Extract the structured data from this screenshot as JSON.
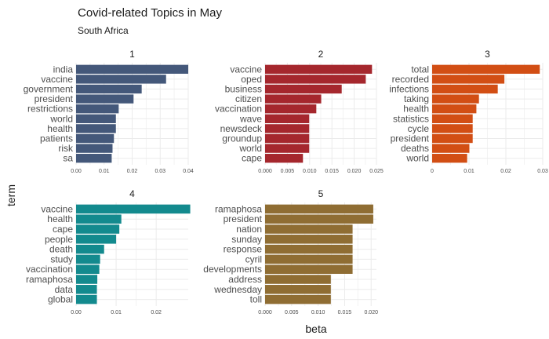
{
  "title": "Covid-related Topics in May",
  "subtitle": "South Africa",
  "chart_data": {
    "type": "bar",
    "orientation": "horizontal",
    "xlabel": "beta",
    "ylabel": "term",
    "grid": true,
    "facets": [
      {
        "label": "1",
        "color": "#44587a",
        "xlim": [
          0,
          0.04
        ],
        "ticks": [
          0,
          0.01,
          0.02,
          0.03,
          0.04
        ],
        "tick_labels": [
          "0.00",
          "0.01",
          "0.02",
          "0.03",
          "0.04"
        ],
        "categories": [
          "india",
          "vaccine",
          "government",
          "president",
          "restrictions",
          "world",
          "health",
          "patients",
          "risk",
          "sa"
        ],
        "values": [
          0.04,
          0.0321,
          0.0234,
          0.0205,
          0.0152,
          0.0142,
          0.0142,
          0.0135,
          0.013,
          0.0127
        ]
      },
      {
        "label": "2",
        "color": "#a5272d",
        "xlim": [
          0,
          0.025
        ],
        "ticks": [
          0,
          0.005,
          0.01,
          0.015,
          0.02,
          0.025
        ],
        "tick_labels": [
          "0.000",
          "0.005",
          "0.010",
          "0.015",
          "0.020",
          "0.025"
        ],
        "categories": [
          "vaccine",
          "oped",
          "business",
          "citizen",
          "vaccination",
          "wave",
          "newsdeck",
          "groundup",
          "world",
          "cape"
        ],
        "values": [
          0.024,
          0.0226,
          0.0172,
          0.0126,
          0.0115,
          0.0099,
          0.0099,
          0.0099,
          0.0099,
          0.0085
        ]
      },
      {
        "label": "3",
        "color": "#d24e14",
        "xlim": [
          0,
          0.03
        ],
        "ticks": [
          0,
          0.01,
          0.02,
          0.03
        ],
        "tick_labels": [
          "0",
          "0.01",
          "0.02",
          "0.03"
        ],
        "categories": [
          "total",
          "recorded",
          "infections",
          "taking",
          "health",
          "statistics",
          "cycle",
          "president",
          "deaths",
          "world"
        ],
        "values": [
          0.0292,
          0.0196,
          0.0178,
          0.0127,
          0.012,
          0.011,
          0.011,
          0.011,
          0.0101,
          0.0095
        ]
      },
      {
        "label": "4",
        "color": "#138a8e",
        "xlim": [
          0,
          0.028
        ],
        "ticks": [
          0,
          0.01,
          0.02
        ],
        "tick_labels": [
          "0.00",
          "0.01",
          "0.02"
        ],
        "categories": [
          "vaccine",
          "health",
          "cape",
          "people",
          "death",
          "study",
          "vaccination",
          "ramaphosa",
          "data",
          "global"
        ],
        "values": [
          0.0285,
          0.0113,
          0.0108,
          0.01,
          0.007,
          0.006,
          0.0058,
          0.0053,
          0.0052,
          0.0052
        ]
      },
      {
        "label": "5",
        "color": "#8f6d33",
        "xlim": [
          0,
          0.021
        ],
        "ticks": [
          0,
          0.005,
          0.01,
          0.015,
          0.02
        ],
        "tick_labels": [
          "0.000",
          "0.005",
          "0.010",
          "0.015",
          "0.020"
        ],
        "categories": [
          "ramaphosa",
          "president",
          "nation",
          "sunday",
          "response",
          "cyril",
          "developments",
          "address",
          "wednesday",
          "toll"
        ],
        "values": [
          0.0204,
          0.0204,
          0.0165,
          0.0165,
          0.0165,
          0.0165,
          0.0165,
          0.0124,
          0.0124,
          0.0124
        ]
      }
    ]
  }
}
